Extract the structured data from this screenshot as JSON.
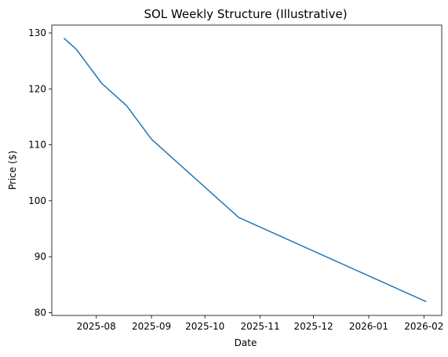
{
  "chart_data": {
    "type": "line",
    "title": "SOL Weekly Structure (Illustrative)",
    "xlabel": "Date",
    "ylabel": "Price ($)",
    "x_axis_type": "date",
    "xlim": [
      "2025-07-07",
      "2026-02-11"
    ],
    "ylim": [
      79.5,
      131.4
    ],
    "grid": false,
    "x_ticks": [
      "2025-08",
      "2025-09",
      "2025-10",
      "2025-11",
      "2025-12",
      "2026-01",
      "2026-02"
    ],
    "y_ticks": [
      80,
      90,
      100,
      110,
      120,
      130
    ],
    "series": [
      {
        "color": "#1f77b4",
        "x": [
          "2025-07-14",
          "2025-07-21",
          "2025-07-28",
          "2025-08-04",
          "2025-08-18",
          "2025-09-01",
          "2025-10-20",
          "2026-02-02"
        ],
        "y": [
          129,
          127,
          124,
          121,
          117,
          111,
          97,
          82
        ]
      }
    ]
  }
}
